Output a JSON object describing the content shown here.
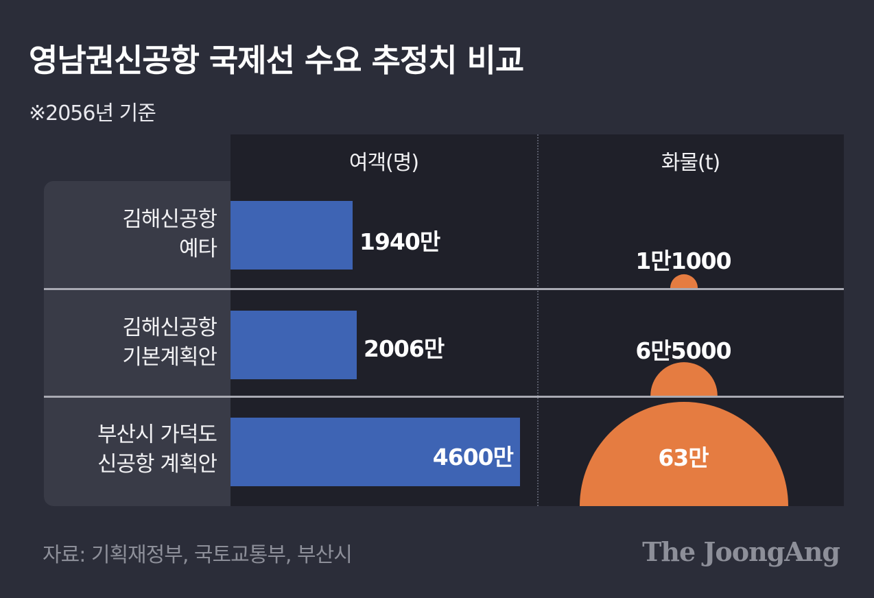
{
  "title": "영남권신공항 국제선 수요 추정치 비교",
  "subtitle": "※2056년 기준",
  "source": "자료: 기획재정부, 국토교통부, 부산시",
  "brand": "The JoongAng",
  "colors": {
    "passenger_bar": "#3e64b4",
    "cargo_circle": "#e57c41"
  },
  "chart_data": {
    "type": "bar",
    "categories": [
      "김해신공항 예타",
      "김해신공항 기본계획안",
      "부산시 가덕도 신공항 계획안"
    ],
    "category_lines": [
      [
        "김해신공항",
        "예타"
      ],
      [
        "김해신공항",
        "기본계획안"
      ],
      [
        "부산시 가덕도",
        "신공항 계획안"
      ]
    ],
    "series": [
      {
        "name": "여객(명)",
        "values": [
          19400000,
          20060000,
          46000000
        ],
        "labels": [
          "1940만",
          "2006만",
          "4600만"
        ]
      },
      {
        "name": "화물(t)",
        "values": [
          11000,
          65000,
          630000
        ],
        "labels": [
          "1만1000",
          "6만5000",
          "63만"
        ]
      }
    ]
  }
}
